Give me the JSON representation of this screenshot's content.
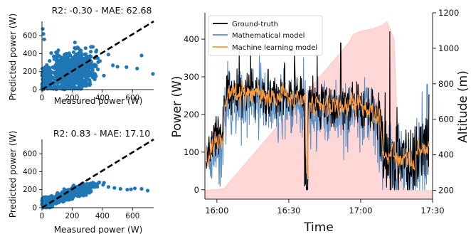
{
  "chart_data": [
    {
      "type": "scatter",
      "title": "R2: -0.30 - MAE: 62.68",
      "xlabel": "Measured power (W)",
      "ylabel": "Predicted power (W)",
      "xlim": [
        0,
        740
      ],
      "ylim": [
        0,
        760
      ],
      "xticks": [
        "0",
        "200",
        "400",
        "600"
      ],
      "yticks": [
        "0",
        "200",
        "400",
        "600"
      ],
      "grid": false,
      "point_color": "#1f77b4",
      "reference_line": "y = x, black dashed",
      "outliers": [
        [
          5,
          675
        ],
        [
          10,
          620
        ],
        [
          15,
          560
        ],
        [
          470,
          270
        ],
        [
          500,
          255
        ],
        [
          560,
          250
        ],
        [
          630,
          235
        ],
        [
          660,
          380
        ],
        [
          735,
          175
        ],
        [
          440,
          390
        ]
      ]
    },
    {
      "type": "scatter",
      "title": "R2: 0.83 - MAE: 17.10",
      "xlabel": "Measured power (W)",
      "ylabel": "Predicted power (W)",
      "xlim": [
        0,
        740
      ],
      "ylim": [
        0,
        760
      ],
      "xticks": [
        "0",
        "200",
        "400",
        "600"
      ],
      "yticks": [
        "0",
        "200",
        "400",
        "600"
      ],
      "grid": false,
      "point_color": "#1f77b4",
      "reference_line": "y = x, black dashed",
      "outliers": [
        [
          440,
          230
        ],
        [
          480,
          220
        ],
        [
          520,
          210
        ],
        [
          565,
          200
        ],
        [
          590,
          205
        ],
        [
          615,
          215
        ],
        [
          660,
          210
        ],
        [
          700,
          190
        ]
      ]
    },
    {
      "type": "line",
      "xlabel": "Time",
      "ylabel": "Power (W)",
      "y2label": "Altitude (m)",
      "xticks": [
        "16:00",
        "16:30",
        "17:00",
        "17:30"
      ],
      "yticks": [
        "0",
        "100",
        "200",
        "300",
        "400"
      ],
      "y2ticks": [
        "200",
        "400",
        "600",
        "800",
        "1000",
        "1200"
      ],
      "xlim_minutes_after_1540": [
        0,
        95
      ],
      "ylim": [
        -25,
        470
      ],
      "y2lim": [
        150,
        1200
      ],
      "legend": "top-left",
      "series": [
        {
          "name": "Ground-truth",
          "color": "#000000",
          "values_summary": "noisy 0-420 W"
        },
        {
          "name": "Mathematical model",
          "color": "#5b8ec2",
          "values_summary": "noisy 0-380 W"
        },
        {
          "name": "Machine learning model",
          "color": "#ff9a3c",
          "values_summary": "smoothed"
        }
      ],
      "altitude": {
        "color": "#ffd0d0",
        "x_minutes": [
          0,
          5,
          8,
          60,
          62,
          66,
          70,
          74,
          76,
          79,
          81,
          84,
          87,
          95
        ],
        "y_m": [
          200,
          205,
          210,
          1030,
          1080,
          1100,
          1110,
          1130,
          1150,
          1050,
          280,
          200,
          200,
          200
        ]
      }
    }
  ]
}
